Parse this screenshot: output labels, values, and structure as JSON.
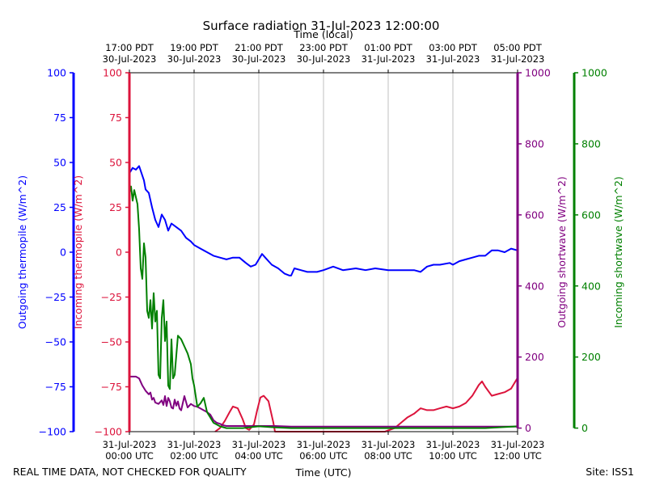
{
  "chart_data": {
    "type": "line",
    "title": "Surface radiation 31-Jul-2023 12:00:00",
    "top_axis_label": "Time (local)",
    "xlabel": "Time (UTC)",
    "footer_left": "REAL TIME DATA, NOT CHECKED FOR QUALITY",
    "footer_right": "Site: ISS1",
    "x_unit": "hours since 31-Jul-2023 00:00 UTC",
    "xlim": [
      0,
      12
    ],
    "x_ticks_utc": [
      {
        "x": 0,
        "line1": "31-Jul-2023",
        "line2": "00:00 UTC"
      },
      {
        "x": 2,
        "line1": "31-Jul-2023",
        "line2": "02:00 UTC"
      },
      {
        "x": 4,
        "line1": "31-Jul-2023",
        "line2": "04:00 UTC"
      },
      {
        "x": 6,
        "line1": "31-Jul-2023",
        "line2": "06:00 UTC"
      },
      {
        "x": 8,
        "line1": "31-Jul-2023",
        "line2": "08:00 UTC"
      },
      {
        "x": 10,
        "line1": "31-Jul-2023",
        "line2": "10:00 UTC"
      },
      {
        "x": 12,
        "line1": "31-Jul-2023",
        "line2": "12:00 UTC"
      }
    ],
    "x_ticks_local": [
      {
        "x": 0,
        "line1": "17:00 PDT",
        "line2": "30-Jul-2023"
      },
      {
        "x": 2,
        "line1": "19:00 PDT",
        "line2": "30-Jul-2023"
      },
      {
        "x": 4,
        "line1": "21:00 PDT",
        "line2": "30-Jul-2023"
      },
      {
        "x": 6,
        "line1": "23:00 PDT",
        "line2": "30-Jul-2023"
      },
      {
        "x": 8,
        "line1": "01:00 PDT",
        "line2": "31-Jul-2023"
      },
      {
        "x": 10,
        "line1": "03:00 PDT",
        "line2": "31-Jul-2023"
      },
      {
        "x": 12,
        "line1": "05:00 PDT",
        "line2": "31-Jul-2023"
      }
    ],
    "axes": [
      {
        "id": "outgoing_thermopile",
        "label": "Outgoing thermopile (W/m^2)",
        "color": "#0000ff",
        "ylim": [
          -100,
          100
        ],
        "ticks": [
          -100,
          -75,
          -50,
          -25,
          0,
          25,
          50,
          75,
          100
        ]
      },
      {
        "id": "incoming_thermopile",
        "label": "Incoming thermopile (W/m^2)",
        "color": "#dc143c",
        "ylim": [
          -100,
          100
        ],
        "ticks": [
          -100,
          -75,
          -50,
          -25,
          0,
          25,
          50,
          75,
          100
        ]
      },
      {
        "id": "outgoing_shortwave",
        "label": "Outgoing shortwave (W/m^2)",
        "color": "#800080",
        "ylim": [
          -10,
          1000
        ],
        "ticks": [
          0,
          200,
          400,
          600,
          800,
          1000
        ]
      },
      {
        "id": "incoming_shortwave",
        "label": "Incoming shortwave (W/m^2)",
        "color": "#008000",
        "ylim": [
          -10,
          1000
        ],
        "ticks": [
          0,
          200,
          400,
          600,
          800,
          1000
        ]
      }
    ],
    "series": [
      {
        "axis": "outgoing_thermopile",
        "color": "#0000ff",
        "x": [
          0,
          0.1,
          0.2,
          0.3,
          0.45,
          0.5,
          0.6,
          0.7,
          0.8,
          0.9,
          1.0,
          1.1,
          1.2,
          1.3,
          1.45,
          1.6,
          1.75,
          1.9,
          2.0,
          2.2,
          2.4,
          2.6,
          2.8,
          3.0,
          3.2,
          3.4,
          3.6,
          3.75,
          3.9,
          4.0,
          4.1,
          4.2,
          4.4,
          4.6,
          4.8,
          4.95,
          5.0,
          5.1,
          5.3,
          5.5,
          5.8,
          6.0,
          6.3,
          6.6,
          7.0,
          7.3,
          7.6,
          8.0,
          8.4,
          8.6,
          8.8,
          9.0,
          9.2,
          9.4,
          9.6,
          9.9,
          10.0,
          10.2,
          10.4,
          10.6,
          10.8,
          11.0,
          11.2,
          11.4,
          11.6,
          11.8,
          12.0
        ],
        "y": [
          44,
          47,
          46,
          48,
          40,
          35,
          33,
          25,
          18,
          14,
          21,
          18,
          12,
          16,
          14,
          12,
          8,
          6,
          4,
          2,
          0,
          -2,
          -3,
          -4,
          -3,
          -3,
          -6,
          -8,
          -7,
          -4,
          -1,
          -3,
          -7,
          -9,
          -12,
          -13,
          -13,
          -9,
          -10,
          -11,
          -11,
          -10,
          -8,
          -10,
          -9,
          -10,
          -9,
          -10,
          -10,
          -10,
          -10,
          -11,
          -8,
          -7,
          -7,
          -6,
          -7,
          -5,
          -4,
          -3,
          -2,
          -2,
          1,
          1,
          0,
          2,
          1
        ]
      },
      {
        "axis": "incoming_thermopile",
        "color": "#dc143c",
        "x": [
          2.65,
          2.8,
          2.95,
          3.1,
          3.2,
          3.35,
          3.5,
          3.6,
          3.7,
          3.85,
          3.95,
          4.05,
          4.15,
          4.3,
          4.45,
          4.5,
          7.9,
          8.2,
          8.4,
          8.6,
          8.8,
          9.0,
          9.2,
          9.4,
          9.6,
          9.8,
          10.0,
          10.2,
          10.4,
          10.6,
          10.8,
          10.9,
          11.0,
          11.2,
          11.4,
          11.6,
          11.8,
          12.0
        ],
        "y": [
          -100,
          -98,
          -94,
          -89,
          -86,
          -87,
          -93,
          -98,
          -99,
          -96,
          -88,
          -81,
          -80,
          -83,
          -95,
          -100,
          -100,
          -98,
          -95,
          -92,
          -90,
          -87,
          -88,
          -88,
          -87,
          -86,
          -87,
          -86,
          -84,
          -80,
          -74,
          -72,
          -75,
          -80,
          -79,
          -78,
          -76,
          -70
        ]
      },
      {
        "axis": "outgoing_shortwave",
        "color": "#800080",
        "x": [
          0,
          0.2,
          0.3,
          0.4,
          0.5,
          0.6,
          0.65,
          0.7,
          0.75,
          0.8,
          0.85,
          0.9,
          1.0,
          1.05,
          1.1,
          1.15,
          1.2,
          1.25,
          1.3,
          1.35,
          1.4,
          1.45,
          1.5,
          1.55,
          1.6,
          1.7,
          1.8,
          1.9,
          2.0,
          2.1,
          2.2,
          2.3,
          2.4,
          2.5,
          2.6,
          2.7,
          2.8,
          2.9,
          3.0,
          3.5,
          4.0,
          4.5,
          5.0,
          6.0,
          7.0,
          8.0,
          9.0,
          10.0,
          11.0,
          12.0
        ],
        "y": [
          145,
          145,
          140,
          120,
          105,
          95,
          100,
          80,
          85,
          72,
          70,
          68,
          78,
          65,
          90,
          62,
          85,
          75,
          58,
          55,
          80,
          63,
          75,
          55,
          50,
          90,
          58,
          68,
          62,
          60,
          55,
          50,
          45,
          38,
          22,
          15,
          12,
          8,
          6,
          6,
          6,
          6,
          4,
          4,
          4,
          4,
          4,
          4,
          4,
          4
        ]
      },
      {
        "axis": "incoming_shortwave",
        "color": "#008000",
        "x": [
          0,
          0.05,
          0.1,
          0.15,
          0.2,
          0.25,
          0.3,
          0.35,
          0.4,
          0.45,
          0.5,
          0.55,
          0.6,
          0.65,
          0.7,
          0.75,
          0.8,
          0.85,
          0.9,
          0.95,
          1.0,
          1.05,
          1.1,
          1.15,
          1.2,
          1.25,
          1.3,
          1.35,
          1.4,
          1.5,
          1.6,
          1.7,
          1.8,
          1.9,
          1.95,
          2.0,
          2.05,
          2.1,
          2.2,
          2.3,
          2.4,
          2.5,
          2.6,
          2.8,
          3.0,
          3.5,
          4.0,
          4.5,
          5.0,
          6.0,
          7.0,
          8.0,
          9.0,
          10.0,
          11.0,
          12.0
        ],
        "y": [
          660,
          680,
          640,
          670,
          650,
          630,
          560,
          450,
          420,
          520,
          480,
          330,
          310,
          360,
          280,
          380,
          300,
          330,
          150,
          140,
          310,
          360,
          245,
          300,
          120,
          110,
          250,
          140,
          150,
          260,
          250,
          230,
          210,
          180,
          140,
          120,
          90,
          60,
          70,
          85,
          45,
          30,
          15,
          5,
          0,
          0,
          5,
          2,
          0,
          0,
          0,
          0,
          0,
          0,
          0,
          5
        ]
      }
    ],
    "grid": {
      "x": true,
      "y": false
    }
  }
}
